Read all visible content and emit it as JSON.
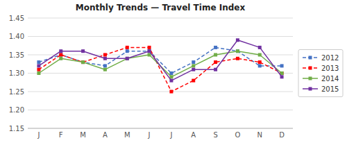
{
  "chart_data": {
    "type": "line",
    "title": "Monthly Trends — Travel Time Index",
    "categories": [
      "J",
      "F",
      "M",
      "A",
      "M",
      "J",
      "J",
      "A",
      "S",
      "O",
      "N",
      "D"
    ],
    "series": [
      {
        "name": "2012",
        "color": "#4472C4",
        "line_style": "dashed",
        "marker": "square",
        "values": [
          1.33,
          1.35,
          1.33,
          1.32,
          1.36,
          1.36,
          1.3,
          1.33,
          1.37,
          1.36,
          1.32,
          1.32
        ]
      },
      {
        "name": "2013",
        "color": "#FF0000",
        "line_style": "dashed",
        "marker": "square",
        "values": [
          1.31,
          1.35,
          1.33,
          1.35,
          1.37,
          1.37,
          1.25,
          1.28,
          1.33,
          1.34,
          1.33,
          1.3
        ]
      },
      {
        "name": "2014",
        "color": "#70AD47",
        "line_style": "solid",
        "marker": "square",
        "values": [
          1.3,
          1.34,
          1.33,
          1.31,
          1.34,
          1.35,
          1.29,
          1.32,
          1.35,
          1.36,
          1.35,
          1.3
        ]
      },
      {
        "name": "2015",
        "color": "#7030A0",
        "line_style": "solid",
        "marker": "square",
        "values": [
          1.32,
          1.36,
          1.36,
          1.34,
          1.34,
          1.36,
          1.28,
          1.31,
          1.31,
          1.39,
          1.37,
          1.29
        ]
      }
    ],
    "ylim": [
      1.15,
      1.45
    ],
    "yticks": [
      1.15,
      {
        "value": 1.2,
        "label": "1.20"
      },
      1.25,
      {
        "value": 1.3,
        "label": "1.30"
      },
      1.35,
      {
        "value": 1.4,
        "label": "1.40"
      },
      1.45
    ],
    "grid": true,
    "legend": "right"
  }
}
